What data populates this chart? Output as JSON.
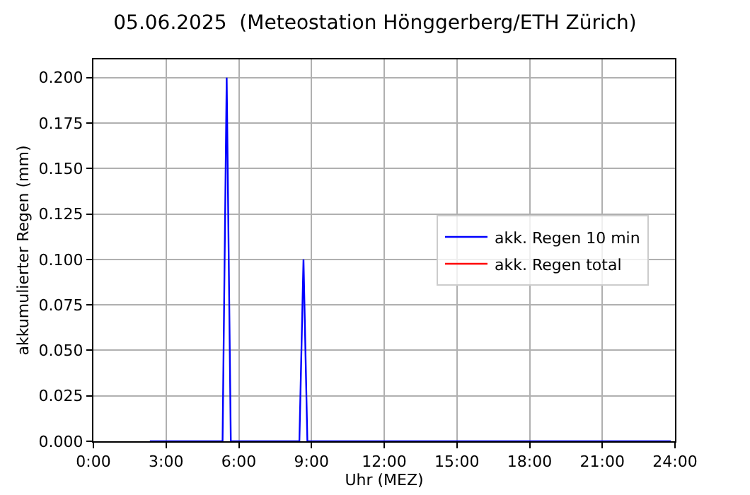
{
  "chart_data": {
    "type": "line",
    "title": "05.06.2025  (Meteostation Hönggerberg/ETH Zürich)",
    "xlabel": "Uhr (MEZ)",
    "ylabel": "akkumulierter Regen (mm)",
    "x": [
      2.33,
      5.33,
      5.5,
      5.67,
      8.5,
      8.67,
      8.83,
      23.83
    ],
    "series": [
      {
        "name": "akk. Regen 10 min",
        "color": "#0000ff",
        "values": [
          0,
          0,
          0.2,
          0,
          0,
          0.1,
          0,
          0
        ]
      },
      {
        "name": "akk. Regen total",
        "color": "#ff0000",
        "values": [
          null,
          null,
          null,
          null,
          null,
          null,
          null,
          null
        ]
      }
    ],
    "xlim": [
      0,
      24
    ],
    "xticks": [
      {
        "value": 0,
        "label": "0:00"
      },
      {
        "value": 3,
        "label": "3:00"
      },
      {
        "value": 6,
        "label": "6:00"
      },
      {
        "value": 9,
        "label": "9:00"
      },
      {
        "value": 12,
        "label": "12:00"
      },
      {
        "value": 15,
        "label": "15:00"
      },
      {
        "value": 18,
        "label": "18:00"
      },
      {
        "value": 21,
        "label": "21:00"
      },
      {
        "value": 24,
        "label": "24:00"
      }
    ],
    "ylim": [
      0,
      0.21
    ],
    "yticks": [
      {
        "value": 0,
        "label": "0.000"
      },
      {
        "value": 0.025,
        "label": "0.025"
      },
      {
        "value": 0.05,
        "label": "0.050"
      },
      {
        "value": 0.075,
        "label": "0.075"
      },
      {
        "value": 0.1,
        "label": "0.100"
      },
      {
        "value": 0.125,
        "label": "0.125"
      },
      {
        "value": 0.15,
        "label": "0.150"
      },
      {
        "value": 0.175,
        "label": "0.175"
      },
      {
        "value": 0.2,
        "label": "0.200"
      }
    ],
    "grid": true,
    "legend": "right",
    "marker": "none",
    "line_style": "solid"
  }
}
